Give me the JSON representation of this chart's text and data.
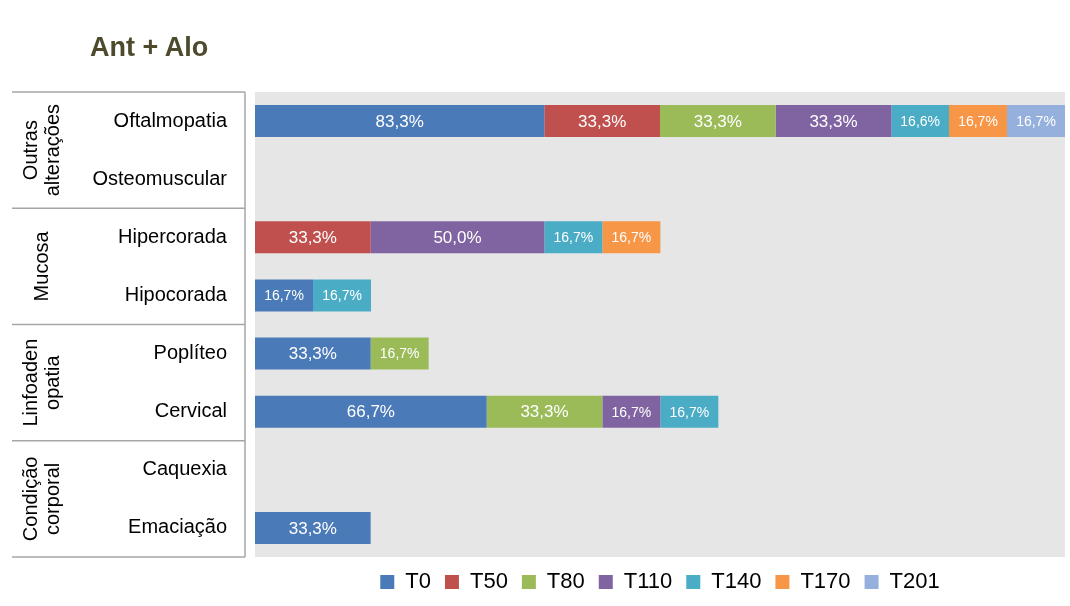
{
  "chart_data": {
    "type": "bar",
    "orientation": "horizontal",
    "stacked": true,
    "title": "Ant + Alo",
    "legend": "bottom",
    "tick_labels": "y",
    "categories": [
      "Oftalmopatia",
      "Osteomuscular",
      "Hipercorada",
      "Hipocorada",
      "Poplíteo",
      "Cervical",
      "Caquexia",
      "Emaciação"
    ],
    "annotations": [
      "Outras alterações",
      "Mucosa",
      "Linfoaden opatia",
      "Condição corporal"
    ],
    "series": [
      {
        "name": "T0",
        "color": "#4a7ab7",
        "values": [
          83.3,
          null,
          null,
          16.7,
          33.3,
          66.7,
          null,
          33.3
        ],
        "value_labels": [
          "83,3%",
          null,
          null,
          "16,7%",
          "33,3%",
          "66,7%",
          null,
          "33,3%"
        ]
      },
      {
        "name": "T50",
        "color": "#c0504d",
        "values": [
          33.3,
          null,
          33.3,
          null,
          null,
          null,
          null,
          null
        ],
        "value_labels": [
          "33,3%",
          null,
          "33,3%",
          null,
          null,
          null,
          null,
          null
        ]
      },
      {
        "name": "T80",
        "color": "#9bbb59",
        "values": [
          33.3,
          null,
          null,
          null,
          16.7,
          33.3,
          null,
          null
        ],
        "value_labels": [
          "33,3%",
          null,
          null,
          null,
          "16,7%",
          "33,3%",
          null,
          null
        ]
      },
      {
        "name": "T110",
        "color": "#8064a2",
        "values": [
          33.3,
          null,
          50.0,
          null,
          null,
          16.7,
          null,
          null
        ],
        "value_labels": [
          "33,3%",
          null,
          "50,0%",
          null,
          null,
          "16,7%",
          null,
          null
        ]
      },
      {
        "name": "T140",
        "color": "#4bacc6",
        "values": [
          16.6,
          null,
          16.7,
          16.7,
          null,
          16.7,
          null,
          null
        ],
        "value_labels": [
          "16,6%",
          null,
          "16,7%",
          "16,7%",
          null,
          "16,7%",
          null,
          null
        ]
      },
      {
        "name": "T170",
        "color": "#f79646",
        "values": [
          16.7,
          null,
          16.7,
          null,
          null,
          null,
          null,
          null
        ],
        "value_labels": [
          "16,7%",
          null,
          "16,7%",
          null,
          null,
          null,
          null,
          null
        ]
      },
      {
        "name": "T201",
        "color": "#95b0dc",
        "values": [
          16.7,
          null,
          null,
          null,
          null,
          null,
          null,
          null
        ],
        "value_labels": [
          "16,7%",
          null,
          null,
          null,
          null,
          null,
          null,
          null
        ]
      }
    ]
  }
}
